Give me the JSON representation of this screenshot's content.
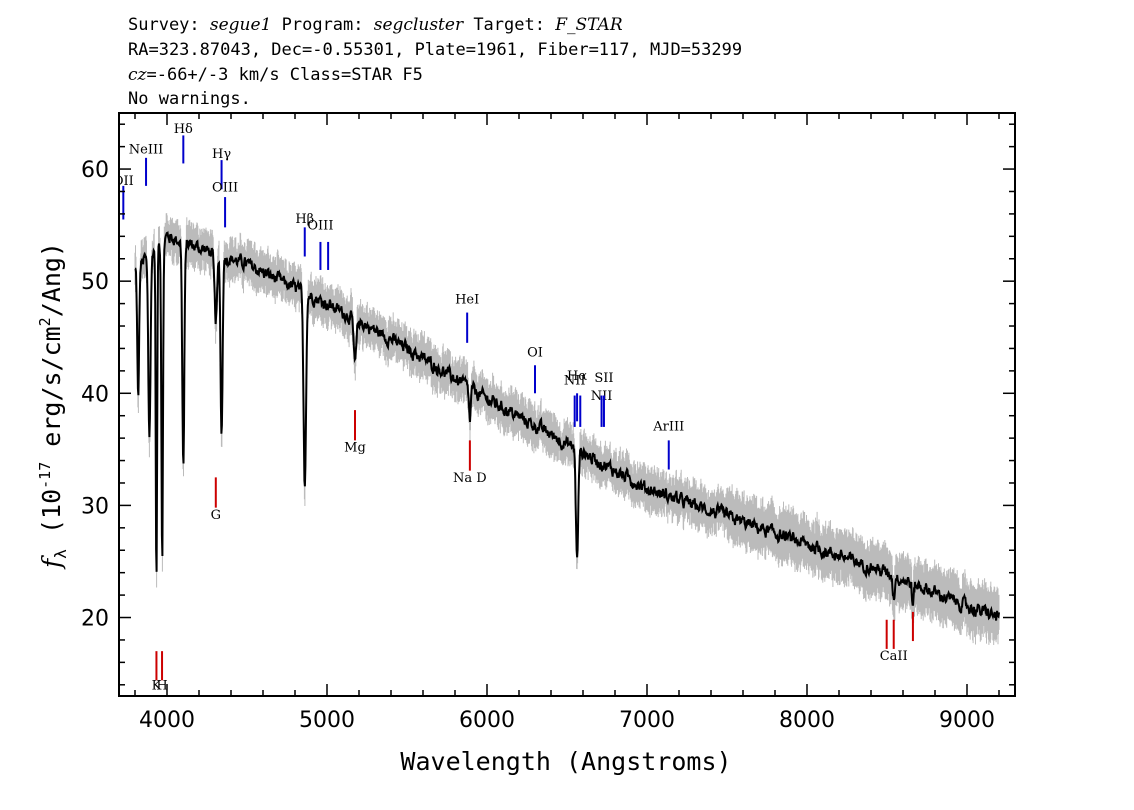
{
  "header": {
    "line1": {
      "survey_label": "Survey: ",
      "survey": "segue1",
      "program_label": " Program: ",
      "program": "segcluster",
      "target_label": " Target: ",
      "target": "F_STAR"
    },
    "line2": "RA=323.87043, Dec=-0.55301, Plate=1961, Fiber=117, MJD=53299",
    "line3": {
      "cz_label": "cz",
      "cz_value": "=-66+/-3",
      "units": " km/s  Class=STAR F5"
    },
    "line4": "No warnings."
  },
  "colors": {
    "flux": "#000000",
    "error": "#bbbbbb",
    "emission": "#0000cc",
    "absorption": "#cc0000"
  },
  "chart_data": {
    "type": "line",
    "xlabel": "Wavelength (Angstroms)",
    "ylabel": "f_λ (10^-17 erg/s/cm^2/Ang)",
    "xlim": [
      3700,
      9300
    ],
    "ylim": [
      13,
      65
    ],
    "x_ticks": [
      4000,
      5000,
      6000,
      7000,
      8000,
      9000
    ],
    "y_ticks": [
      20,
      30,
      40,
      50,
      60
    ],
    "continuum": {
      "x": [
        3800,
        4000,
        4200,
        4500,
        5000,
        5500,
        6000,
        6500,
        7000,
        7500,
        8000,
        8500,
        9000,
        9200
      ],
      "y": [
        51,
        54,
        53,
        51.5,
        48,
        44,
        39.5,
        35.5,
        31.5,
        29,
        26.5,
        24,
        21,
        20
      ]
    },
    "absorption_features": [
      {
        "x": 3820,
        "depth": 12,
        "width": 8
      },
      {
        "x": 3890,
        "depth": 16,
        "width": 10
      },
      {
        "x": 3934,
        "depth": 30,
        "width": 6
      },
      {
        "x": 3970,
        "depth": 28,
        "width": 7
      },
      {
        "x": 4102,
        "depth": 20,
        "width": 9
      },
      {
        "x": 4305,
        "depth": 6,
        "width": 12
      },
      {
        "x": 4341,
        "depth": 16,
        "width": 9
      },
      {
        "x": 4861,
        "depth": 17,
        "width": 11
      },
      {
        "x": 5175,
        "depth": 4,
        "width": 12
      },
      {
        "x": 5893,
        "depth": 3,
        "width": 8
      },
      {
        "x": 6563,
        "depth": 10,
        "width": 10
      },
      {
        "x": 8542,
        "depth": 2,
        "width": 8
      },
      {
        "x": 8662,
        "depth": 2,
        "width": 8
      }
    ],
    "emission_lines": [
      {
        "label": "OII",
        "x": 3727,
        "y_top": 58.5,
        "y_bottom": 55.5,
        "label_y": 58.6
      },
      {
        "label": "NeIII",
        "x": 3869,
        "y_top": 61,
        "y_bottom": 58.5,
        "label_y": 61.4
      },
      {
        "label": "Hδ",
        "x": 4102,
        "y_top": 63,
        "y_bottom": 60.5,
        "label_y": 63.2
      },
      {
        "label": "Hγ",
        "x": 4341,
        "y_top": 60.8,
        "y_bottom": 58.2,
        "label_y": 61.0
      },
      {
        "label": "OIII",
        "x": 4363,
        "y_top": 57.5,
        "y_bottom": 54.8,
        "label_y": 58.0
      },
      {
        "label": "Hβ",
        "x": 4861,
        "y_top": 54.8,
        "y_bottom": 52.2,
        "label_y": 55.2
      },
      {
        "label": "OIII",
        "x": 4959,
        "y_top": 53.5,
        "y_bottom": 51,
        "label_y": 54.6
      },
      {
        "label": "OIII",
        "x": 5007,
        "y_top": 53.5,
        "y_bottom": 51,
        "label_y": null
      },
      {
        "label": "HeI",
        "x": 5876,
        "y_top": 47.2,
        "y_bottom": 44.5,
        "label_y": 48.0
      },
      {
        "label": "OI",
        "x": 6300,
        "y_top": 42.5,
        "y_bottom": 40,
        "label_y": 43.3
      },
      {
        "label": "NII",
        "x": 6548,
        "y_top": 39.8,
        "y_bottom": 37,
        "label_y": 40.8
      },
      {
        "label": "Hα",
        "x": 6563,
        "y_top": 40,
        "y_bottom": 37.5,
        "label_y": 41.2
      },
      {
        "label": "NII",
        "x": 6583,
        "y_top": 39.8,
        "y_bottom": 37,
        "label_y": null
      },
      {
        "label": "NII",
        "x": 6716,
        "y_top": 39.8,
        "y_bottom": 37,
        "label_y": 39.4
      },
      {
        "label": "SII",
        "x": 6731,
        "y_top": 39.8,
        "y_bottom": 37,
        "label_y": 41.0
      },
      {
        "label": "ArIII",
        "x": 7136,
        "y_top": 35.8,
        "y_bottom": 33.2,
        "label_y": 36.7
      }
    ],
    "absorption_lines": [
      {
        "label": "K",
        "x": 3934,
        "y_top": 17,
        "y_bottom": 14.4,
        "label_y": 13.6
      },
      {
        "label": "H",
        "x": 3969,
        "y_top": 17,
        "y_bottom": 14.4,
        "label_y": 13.6
      },
      {
        "label": "G",
        "x": 4305,
        "y_top": 32.5,
        "y_bottom": 29.8,
        "label_y": 28.8
      },
      {
        "label": "Mg",
        "x": 5175,
        "y_top": 38.5,
        "y_bottom": 35.8,
        "label_y": 34.8
      },
      {
        "label": "Na  D",
        "x": 5893,
        "y_top": 35.8,
        "y_bottom": 33.1,
        "label_y": 32.1
      },
      {
        "label": "CaII",
        "x": 8498,
        "y_top": 19.8,
        "y_bottom": 17.2,
        "label_y": null
      },
      {
        "label": "CaII",
        "x": 8542,
        "y_top": 19.8,
        "y_bottom": 17.2,
        "label_y": 16.2
      },
      {
        "label": "CaII",
        "x": 8662,
        "y_top": 20.5,
        "y_bottom": 17.9,
        "label_y": null
      }
    ]
  }
}
